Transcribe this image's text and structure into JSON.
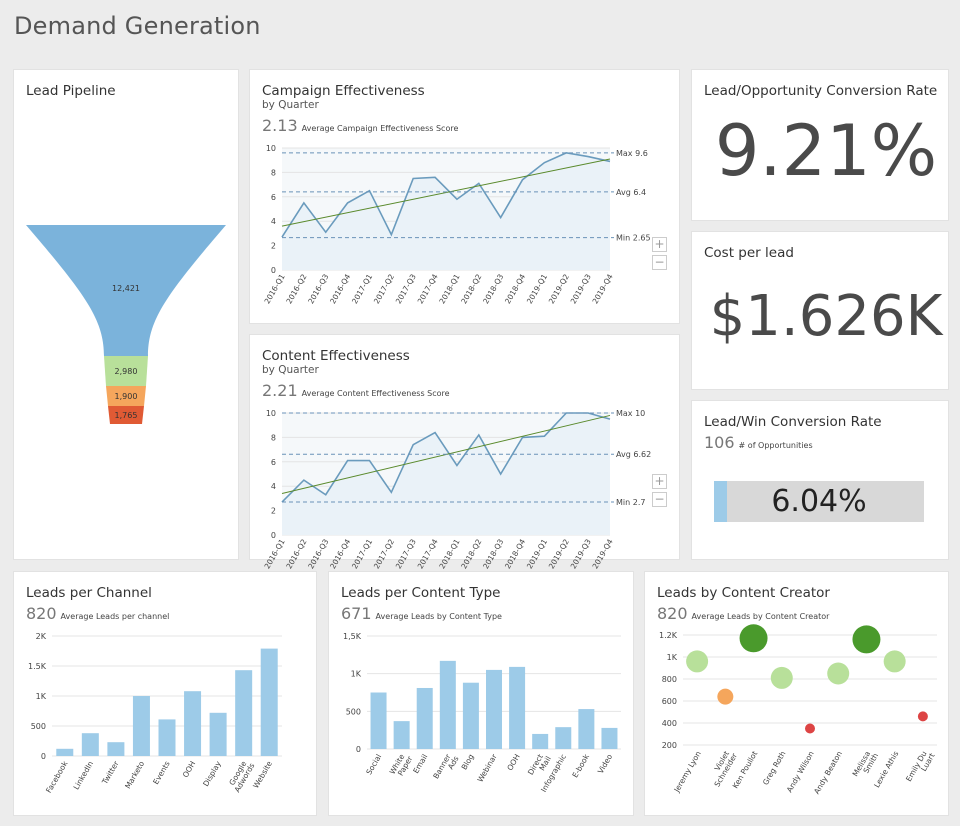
{
  "page": {
    "title": "Demand Generation"
  },
  "lead_pipeline": {
    "title": "Lead Pipeline"
  },
  "campaign": {
    "title": "Campaign Effectiveness",
    "subtitle": "by Quarter",
    "stat_value": "2.13",
    "stat_label": "Average Campaign Effectiveness Score",
    "max_label": "Max 9.6",
    "avg_label": "Avg 6.4",
    "min_label": "Min 2.65"
  },
  "content": {
    "title": "Content Effectiveness",
    "subtitle": "by Quarter",
    "stat_value": "2.21",
    "stat_label": "Average Content Effectiveness Score",
    "max_label": "Max 10",
    "avg_label": "Avg 6.62",
    "min_label": "Min 2.7"
  },
  "conversion": {
    "title": "Lead/Opportunity Conversion Rate",
    "value": "9.21%"
  },
  "cost": {
    "title": "Cost per lead",
    "value": "$1.626K"
  },
  "win": {
    "title": "Lead/Win Conversion Rate",
    "stat_value": "106",
    "stat_label": "# of Opportunities",
    "value": "6.04%",
    "progress": 0.0604
  },
  "channel": {
    "title": "Leads per Channel",
    "stat_value": "820",
    "stat_label": "Average Leads per channel"
  },
  "content_type": {
    "title": "Leads per Content Type",
    "stat_value": "671",
    "stat_label": "Average Leads by Content Type"
  },
  "creator": {
    "title": "Leads by Content Creator",
    "stat_value": "820",
    "stat_label": "Average Leads by Content Creator"
  },
  "zoom": {
    "plus": "+",
    "minus": "−"
  },
  "colors": {
    "line": "#6a9bbd",
    "area": "#eaf2f8",
    "trend": "#5a8a2c",
    "ref": "#6a92b8",
    "bar": "#9dcbe8",
    "funnel": [
      "#7bb3db",
      "#b8e09a",
      "#f5a65c",
      "#e05a34"
    ],
    "bubble_green_dark": "#4a9a2c",
    "bubble_green_light": "#b8e09a",
    "bubble_orange": "#f5a65c",
    "bubble_red": "#dd4444"
  },
  "chart_data": [
    {
      "id": "lead_pipeline",
      "type": "funnel",
      "categories": [
        "12,421",
        "2,980",
        "1,900",
        "1,765"
      ],
      "values": [
        12421,
        2980,
        1900,
        1765
      ]
    },
    {
      "id": "campaign",
      "type": "line",
      "x": [
        "2016-Q1",
        "2016-Q2",
        "2016-Q3",
        "2016-Q4",
        "2017-Q1",
        "2017-Q2",
        "2017-Q3",
        "2017-Q4",
        "2018-Q1",
        "2018-Q2",
        "2018-Q3",
        "2018-Q4",
        "2019-Q1",
        "2019-Q2",
        "2019-Q3",
        "2019-Q4"
      ],
      "values": [
        2.7,
        5.5,
        3.1,
        5.5,
        6.5,
        2.9,
        7.5,
        7.6,
        5.8,
        7.1,
        4.3,
        7.4,
        8.8,
        9.6,
        9.3,
        8.9
      ],
      "trend": [
        3.6,
        9.1
      ],
      "max": 9.6,
      "avg": 6.4,
      "min": 2.65,
      "ylim": [
        0,
        10
      ],
      "yticks": [
        0,
        2,
        4,
        6,
        8,
        10
      ],
      "grid": true
    },
    {
      "id": "content",
      "type": "line",
      "x": [
        "2016-Q1",
        "2016-Q2",
        "2016-Q3",
        "2016-Q4",
        "2017-Q1",
        "2017-Q2",
        "2017-Q3",
        "2017-Q4",
        "2018-Q1",
        "2018-Q2",
        "2018-Q3",
        "2018-Q4",
        "2019-Q1",
        "2019-Q2",
        "2019-Q3",
        "2019-Q4"
      ],
      "values": [
        2.7,
        4.5,
        3.3,
        6.1,
        6.1,
        3.5,
        7.4,
        8.4,
        5.7,
        8.2,
        5.0,
        8.0,
        8.1,
        10.0,
        10.0,
        9.5
      ],
      "trend": [
        3.4,
        9.8
      ],
      "max": 10,
      "avg": 6.62,
      "min": 2.7,
      "ylim": [
        0,
        10
      ],
      "yticks": [
        0,
        2,
        4,
        6,
        8,
        10
      ],
      "grid": true
    },
    {
      "id": "channel",
      "type": "bar",
      "categories": [
        "Facebook",
        "LinkedIn",
        "Twitter",
        "Marketo",
        "Events",
        "OOH",
        "Display",
        "Google Adwords",
        "Website"
      ],
      "values": [
        120,
        380,
        230,
        1000,
        610,
        1080,
        720,
        1430,
        1790
      ],
      "ylim": [
        0,
        2000
      ],
      "yticks": [
        0,
        500,
        1000,
        1500,
        2000
      ],
      "ytick_labels": [
        "0",
        "500",
        "1K",
        "1.5K",
        "2K"
      ],
      "grid": true
    },
    {
      "id": "content_type",
      "type": "bar",
      "categories": [
        "Social",
        "White Paper",
        "Email",
        "Banner Ads",
        "Blog",
        "Webinar",
        "OOH",
        "Direct Mail",
        "Infographic",
        "E-book",
        "Video"
      ],
      "values": [
        750,
        370,
        810,
        1170,
        880,
        1050,
        1090,
        200,
        290,
        530,
        280
      ],
      "ylim": [
        0,
        1500
      ],
      "yticks": [
        0,
        500,
        1000,
        1500
      ],
      "ytick_labels": [
        "0",
        "500",
        "1K",
        "1,5K"
      ],
      "grid": true
    },
    {
      "id": "creator",
      "type": "scatter",
      "categories": [
        "Jeremy Lyon",
        "Violet Schneider",
        "Ken Poullot",
        "Greg Roth",
        "Andy Wilson",
        "Andy Beaton",
        "Melissa Smith",
        "Lexie Athis",
        "Emily Du Luart"
      ],
      "values": [
        960,
        640,
        1170,
        810,
        350,
        850,
        1160,
        960,
        460
      ],
      "sizes": [
        "medium",
        "small",
        "large",
        "medium",
        "tiny",
        "medium",
        "large",
        "medium",
        "tiny"
      ],
      "ylim": [
        200,
        1300
      ],
      "yticks": [
        200,
        400,
        600,
        800,
        1000,
        1200
      ],
      "ytick_labels": [
        "200",
        "400",
        "600",
        "800",
        "1K",
        "1.2K"
      ],
      "grid": true
    }
  ]
}
